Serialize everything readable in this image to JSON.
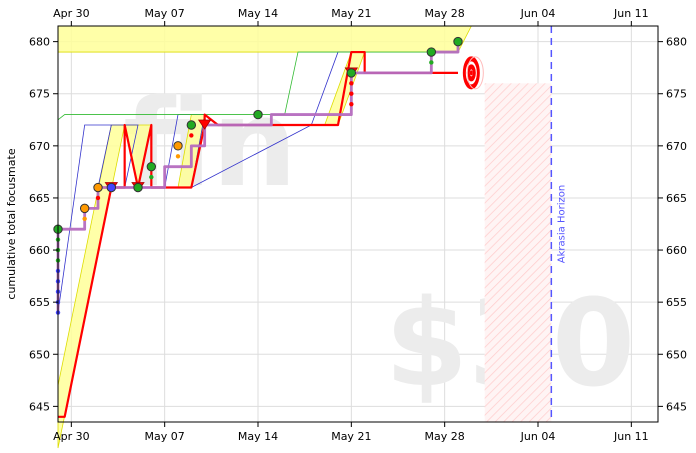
{
  "chart_data": {
    "type": "line",
    "title": "",
    "ylabel": "cumulative total focusmate",
    "xlim": [
      "2024-04-29",
      "2024-06-13"
    ],
    "ylim": [
      643.5,
      681.5
    ],
    "x_ticks": [
      "2024-04-30",
      "2024-05-07",
      "2024-05-14",
      "2024-05-21",
      "2024-05-28",
      "2024-06-04",
      "2024-06-11"
    ],
    "x_tick_labels": [
      "Apr 30",
      "May 07",
      "May 14",
      "May 21",
      "May 28",
      "Jun 04",
      "Jun 11"
    ],
    "y_ticks": [
      645,
      650,
      655,
      660,
      665,
      670,
      675,
      680
    ],
    "watermarks": {
      "upper": "fin",
      "lower": "$30"
    },
    "horizon": {
      "date": "2024-06-05",
      "label": "Akrasia Horizon",
      "color": "#5555ff"
    },
    "goal": {
      "date": "2024-05-30",
      "value": 677
    },
    "red_hatch_range": [
      "2024-05-31",
      "2024-06-05"
    ],
    "grid": true,
    "bright_red_line": [
      [
        "2024-04-29",
        644
      ],
      [
        "2024-04-29.5",
        644
      ],
      [
        "2024-05-03",
        666
      ],
      [
        "2024-05-04",
        666
      ],
      [
        "2024-05-04",
        672
      ],
      [
        "2024-05-05",
        666
      ],
      [
        "2024-05-06",
        672
      ],
      [
        "2024-05-06",
        666
      ],
      [
        "2024-05-09",
        666
      ],
      [
        "2024-05-10",
        672
      ],
      [
        "2024-05-10",
        673
      ],
      [
        "2024-05-11",
        672
      ],
      [
        "2024-05-20",
        672
      ],
      [
        "2024-05-21",
        679
      ],
      [
        "2024-05-22",
        679
      ],
      [
        "2024-05-22",
        677
      ],
      [
        "2024-05-29",
        677
      ]
    ],
    "yellow_band_polygons": [
      [
        [
          "2024-04-29",
          647
        ],
        [
          "2024-05-03",
          672
        ],
        [
          "2024-05-04",
          672
        ],
        [
          "2024-04-29",
          641
        ]
      ],
      [
        [
          "2024-05-04",
          672
        ],
        [
          "2024-05-06",
          672
        ],
        [
          "2024-05-05",
          666
        ]
      ],
      [
        [
          "2024-05-08",
          666
        ],
        [
          "2024-05-09",
          673
        ],
        [
          "2024-05-10",
          673
        ],
        [
          "2024-05-09",
          666
        ]
      ],
      [
        [
          "2024-05-19",
          672
        ],
        [
          "2024-05-21",
          679
        ],
        [
          "2024-05-22",
          679
        ],
        [
          "2024-05-20",
          672
        ]
      ],
      [
        [
          "2024-04-29",
          679
        ],
        [
          "2024-05-29",
          679
        ],
        [
          "2024-05-30",
          681.5
        ],
        [
          "2024-04-29",
          681.5
        ]
      ]
    ],
    "blue_bound_line": [
      [
        "2024-04-29",
        654
      ],
      [
        "2024-05-01",
        672
      ],
      [
        "2024-05-03",
        672
      ],
      [
        "2024-05-02",
        666
      ],
      [
        "2024-05-03",
        672
      ],
      [
        "2024-05-05",
        672
      ],
      [
        "2024-05-04",
        666
      ],
      [
        "2024-05-07",
        666
      ],
      [
        "2024-05-08",
        673
      ],
      [
        "2024-05-10",
        673
      ],
      [
        "2024-05-09",
        666
      ],
      [
        "2024-05-18",
        672
      ],
      [
        "2024-05-20",
        679
      ],
      [
        "2024-05-22",
        679
      ]
    ],
    "green_bound_line": [
      [
        "2024-04-29",
        672.5
      ],
      [
        "2024-04-29.5",
        673
      ],
      [
        "2024-05-16",
        673
      ],
      [
        "2024-05-17",
        679
      ],
      [
        "2024-05-29",
        679
      ]
    ],
    "purple_step_line": [
      [
        "2024-04-29",
        654
      ],
      [
        "2024-04-29",
        662
      ],
      [
        "2024-05-01",
        662
      ],
      [
        "2024-05-01",
        664
      ],
      [
        "2024-05-02",
        664
      ],
      [
        "2024-05-02",
        666
      ],
      [
        "2024-05-06",
        666
      ],
      [
        "2024-05-07",
        666
      ],
      [
        "2024-05-07",
        668
      ],
      [
        "2024-05-09",
        668
      ],
      [
        "2024-05-09",
        670
      ],
      [
        "2024-05-10",
        670
      ],
      [
        "2024-05-10",
        672
      ],
      [
        "2024-05-15",
        672
      ],
      [
        "2024-05-15",
        673
      ],
      [
        "2024-05-21",
        673
      ],
      [
        "2024-05-21",
        677
      ],
      [
        "2024-05-27",
        677
      ],
      [
        "2024-05-27",
        679
      ],
      [
        "2024-05-29",
        679
      ],
      [
        "2024-05-29",
        680
      ]
    ],
    "points": [
      {
        "x": "2024-04-29",
        "y": 662,
        "color": "green"
      },
      {
        "x": "2024-05-01",
        "y": 664,
        "color": "orange"
      },
      {
        "x": "2024-05-02",
        "y": 666,
        "color": "orange"
      },
      {
        "x": "2024-05-03",
        "y": 666,
        "color": "blue"
      },
      {
        "x": "2024-05-05",
        "y": 666,
        "color": "green"
      },
      {
        "x": "2024-05-06",
        "y": 668,
        "color": "green"
      },
      {
        "x": "2024-05-08",
        "y": 670,
        "color": "orange"
      },
      {
        "x": "2024-05-09",
        "y": 672,
        "color": "green"
      },
      {
        "x": "2024-05-14",
        "y": 673,
        "color": "green"
      },
      {
        "x": "2024-05-21",
        "y": 677,
        "color": "green"
      },
      {
        "x": "2024-05-27",
        "y": 679,
        "color": "green"
      },
      {
        "x": "2024-05-29",
        "y": 680,
        "color": "green"
      }
    ],
    "red_triangles": [
      {
        "x": "2024-05-03",
        "y": 666
      },
      {
        "x": "2024-05-05",
        "y": 666
      },
      {
        "x": "2024-05-10",
        "y": 672
      },
      {
        "x": "2024-05-21",
        "y": 677
      }
    ],
    "small_dots": [
      {
        "x": "2024-04-29",
        "y": 654,
        "color": "blue"
      },
      {
        "x": "2024-04-29",
        "y": 655,
        "color": "blue"
      },
      {
        "x": "2024-04-29",
        "y": 656,
        "color": "blue"
      },
      {
        "x": "2024-04-29",
        "y": 657,
        "color": "blue"
      },
      {
        "x": "2024-04-29",
        "y": 658,
        "color": "blue"
      },
      {
        "x": "2024-04-29",
        "y": 659,
        "color": "green"
      },
      {
        "x": "2024-04-29",
        "y": 660,
        "color": "green"
      },
      {
        "x": "2024-04-29",
        "y": 661,
        "color": "green"
      },
      {
        "x": "2024-05-01",
        "y": 663,
        "color": "orange"
      },
      {
        "x": "2024-05-02",
        "y": 665,
        "color": "red"
      },
      {
        "x": "2024-05-06",
        "y": 667,
        "color": "green"
      },
      {
        "x": "2024-05-08",
        "y": 669,
        "color": "orange"
      },
      {
        "x": "2024-05-09",
        "y": 671,
        "color": "red"
      },
      {
        "x": "2024-05-21",
        "y": 674,
        "color": "red"
      },
      {
        "x": "2024-05-21",
        "y": 675,
        "color": "red"
      },
      {
        "x": "2024-05-21",
        "y": 676,
        "color": "red"
      },
      {
        "x": "2024-05-27",
        "y": 678,
        "color": "green"
      }
    ],
    "colors": {
      "bright_red": "#ff0000",
      "purple": "#b56bbf",
      "blue_bound": "#3333cc",
      "green_bound": "#33bb33",
      "yellow_band": "#ffff99",
      "yellow_edge": "#dddd00",
      "dot_green": "#22aa22",
      "dot_orange": "#ff9900",
      "dot_blue": "#4444ff",
      "dot_red": "#ff0000"
    }
  }
}
